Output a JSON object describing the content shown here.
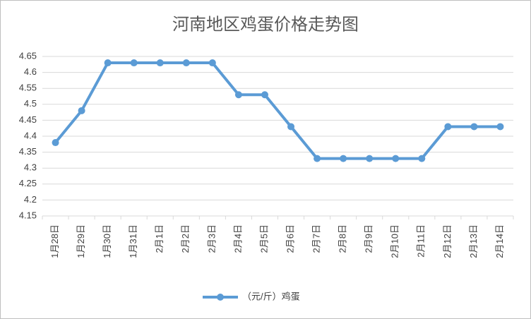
{
  "chart_data": {
    "type": "line",
    "title": "河南地区鸡蛋价格走势图",
    "categories": [
      "1月28日",
      "1月29日",
      "1月30日",
      "1月31日",
      "2月1日",
      "2月2日",
      "2月3日",
      "2月4日",
      "2月5日",
      "2月6日",
      "2月7日",
      "2月8日",
      "2月9日",
      "2月10日",
      "2月11日",
      "2月12日",
      "2月13日",
      "2月14日"
    ],
    "series": [
      {
        "name": "（元/斤）鸡蛋",
        "color": "#5b9bd5",
        "values": [
          4.38,
          4.48,
          4.63,
          4.63,
          4.63,
          4.63,
          4.63,
          4.53,
          4.53,
          4.43,
          4.33,
          4.33,
          4.33,
          4.33,
          4.33,
          4.43,
          4.43,
          4.43
        ]
      }
    ],
    "ylim": [
      4.15,
      4.65
    ],
    "yticks": [
      4.15,
      4.2,
      4.25,
      4.3,
      4.35,
      4.4,
      4.45,
      4.5,
      4.55,
      4.6,
      4.65
    ],
    "grid": true,
    "legend": "bottom"
  }
}
